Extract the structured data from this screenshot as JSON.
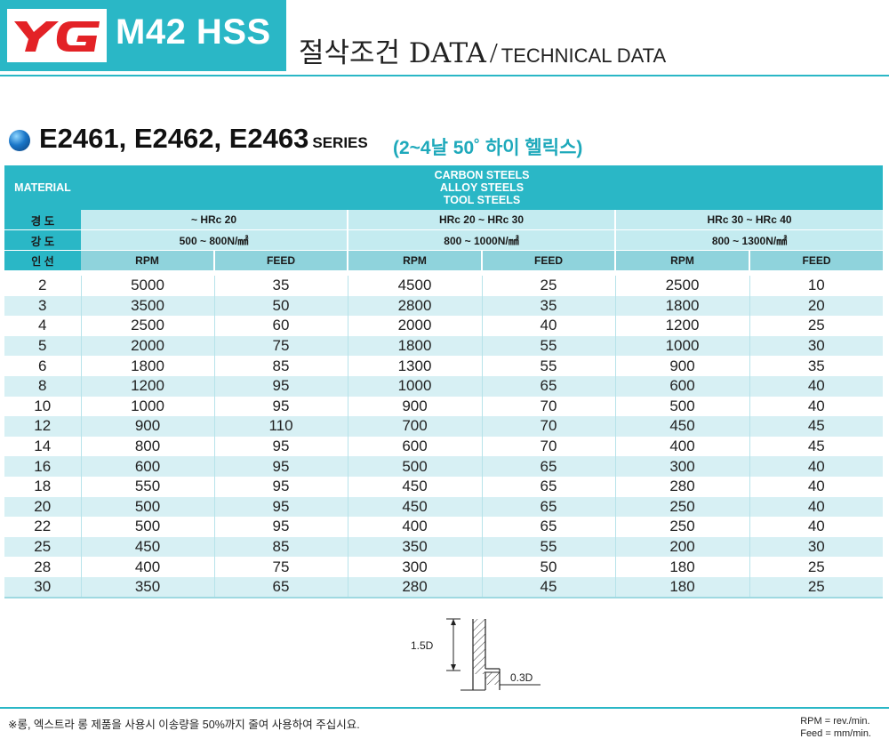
{
  "header": {
    "logo_text": "YG",
    "product": "M42 HSS",
    "title_ko": "절삭조건 DATA",
    "title_slash": "/",
    "title_en": "TECHNICAL DATA"
  },
  "series": {
    "codes": "E2461, E2462, E2463",
    "suffix": "SERIES",
    "description": "(2~4날 50˚ 하이 헬릭스)"
  },
  "table": {
    "material_label": "MATERIAL",
    "material_lines": [
      "CARBON STEELS",
      "ALLOY STEELS",
      "TOOL STEELS"
    ],
    "hardness_label": "경  도",
    "strength_label": "강  도",
    "diameter_label": "인  선",
    "groups": [
      {
        "hardness": "~ HRc 20",
        "strength": "500 ~ 800N/㎟"
      },
      {
        "hardness": "HRc 20 ~ HRc 30",
        "strength": "800 ~ 1000N/㎟"
      },
      {
        "hardness": "HRc 30 ~ HRc 40",
        "strength": "800 ~ 1300N/㎟"
      }
    ],
    "col_rpm": "RPM",
    "col_feed": "FEED",
    "rows": [
      [
        "2",
        "5000",
        "35",
        "4500",
        "25",
        "2500",
        "10"
      ],
      [
        "3",
        "3500",
        "50",
        "2800",
        "35",
        "1800",
        "20"
      ],
      [
        "4",
        "2500",
        "60",
        "2000",
        "40",
        "1200",
        "25"
      ],
      [
        "5",
        "2000",
        "75",
        "1800",
        "55",
        "1000",
        "30"
      ],
      [
        "6",
        "1800",
        "85",
        "1300",
        "55",
        "900",
        "35"
      ],
      [
        "8",
        "1200",
        "95",
        "1000",
        "65",
        "600",
        "40"
      ],
      [
        "10",
        "1000",
        "95",
        "900",
        "70",
        "500",
        "40"
      ],
      [
        "12",
        "900",
        "110",
        "700",
        "70",
        "450",
        "45"
      ],
      [
        "14",
        "800",
        "95",
        "600",
        "70",
        "400",
        "45"
      ],
      [
        "16",
        "600",
        "95",
        "500",
        "65",
        "300",
        "40"
      ],
      [
        "18",
        "550",
        "95",
        "450",
        "65",
        "280",
        "40"
      ],
      [
        "20",
        "500",
        "95",
        "450",
        "65",
        "250",
        "40"
      ],
      [
        "22",
        "500",
        "95",
        "400",
        "65",
        "250",
        "40"
      ],
      [
        "25",
        "450",
        "85",
        "350",
        "55",
        "200",
        "30"
      ],
      [
        "28",
        "400",
        "75",
        "300",
        "50",
        "180",
        "25"
      ],
      [
        "30",
        "350",
        "65",
        "280",
        "45",
        "180",
        "25"
      ]
    ]
  },
  "diagram": {
    "depth_label": "1.5D",
    "width_label": "0.3D"
  },
  "footer": {
    "note": "※롱, 엑스트라 롱 제품을 사용시 이송량을 50%까지 줄여 사용하여 주십시요.",
    "rpm_unit": "RPM = rev./min.",
    "feed_unit": "Feed = mm/min."
  },
  "colors": {
    "accent": "#2ab7c6",
    "band_light": "#d7f0f4",
    "header_sub": "#c4ebf0",
    "header_cols": "#8fd3dc",
    "logo_red": "#e32226"
  }
}
